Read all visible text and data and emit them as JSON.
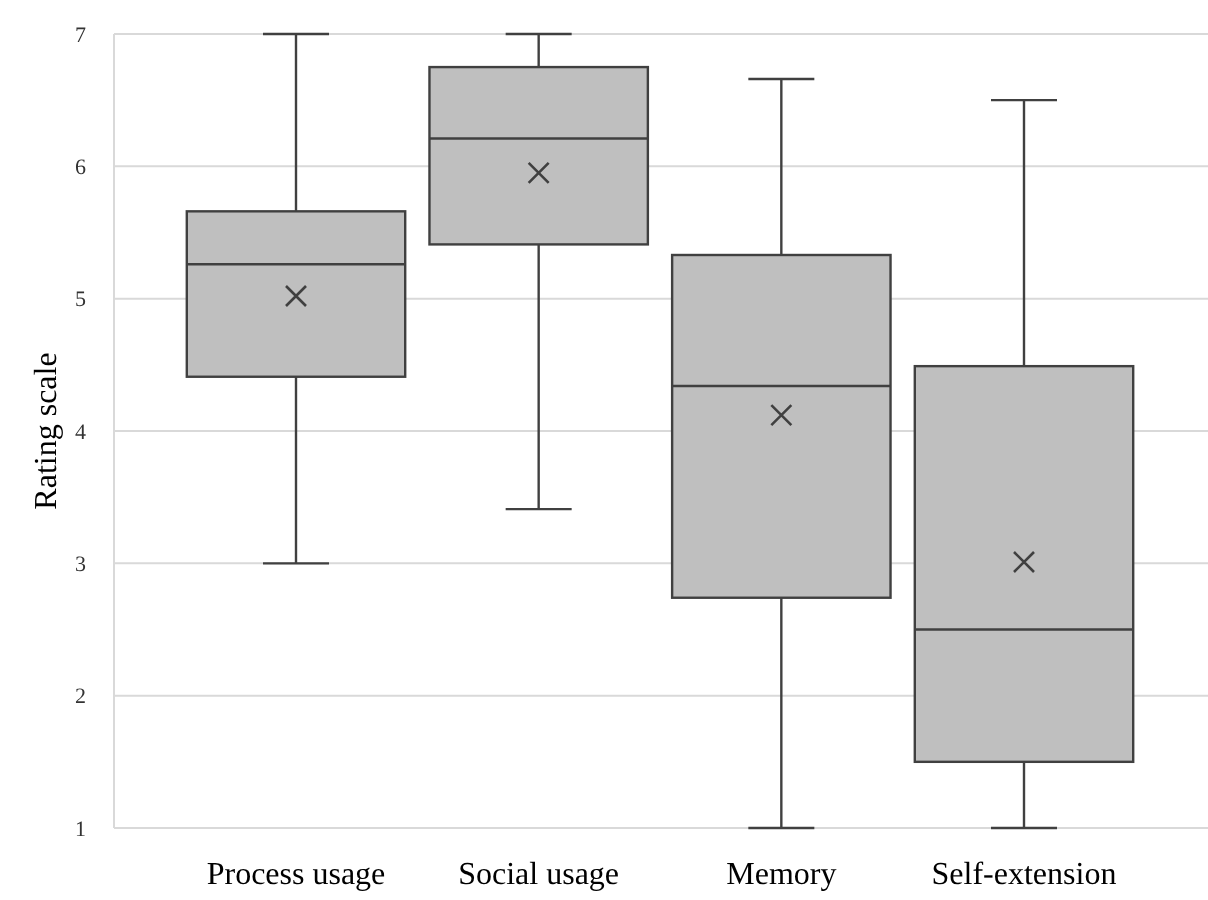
{
  "chart_data": {
    "type": "box",
    "ylabel": "Rating scale",
    "categories": [
      "Process usage",
      "Social usage",
      "Memory",
      "Self-extension"
    ],
    "color": "#bfbfbf",
    "ylim": [
      1,
      7
    ],
    "yticks": [
      1,
      2,
      3,
      4,
      5,
      6,
      7
    ],
    "grid": "y",
    "marker": "cross",
    "boxes": [
      {
        "low": 3,
        "q1": 4.41,
        "median": 5.26,
        "q3": 5.66,
        "high": 7,
        "mean": 5.02
      },
      {
        "low": 3.41,
        "q1": 5.41,
        "median": 6.21,
        "q3": 6.75,
        "high": 7,
        "mean": 5.95
      },
      {
        "low": 1,
        "q1": 2.74,
        "median": 4.34,
        "q3": 5.33,
        "high": 6.66,
        "mean": 4.12
      },
      {
        "low": 1,
        "q1": 1.5,
        "median": 2.5,
        "q3": 4.49,
        "high": 6.5,
        "mean": 3.01
      }
    ]
  }
}
